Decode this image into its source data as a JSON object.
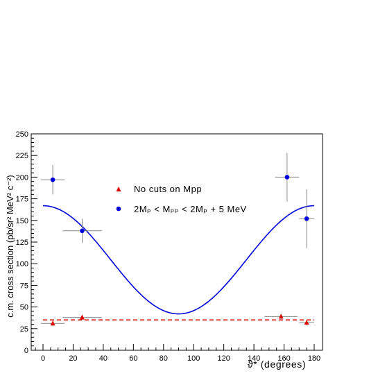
{
  "chart_data": {
    "type": "scatter",
    "xlabel": "ϑ* (degrees)",
    "ylabel": "c.m. cross section (pb/sr² MeV² c⁻²)",
    "xlim": [
      -8,
      180
    ],
    "ylim": [
      0,
      250
    ],
    "xticks": [
      0,
      20,
      40,
      60,
      80,
      100,
      120,
      140,
      160,
      180
    ],
    "yticks": [
      0,
      25,
      50,
      75,
      100,
      125,
      150,
      175,
      200,
      225,
      250
    ],
    "legend_position": "center",
    "grid": false,
    "series": [
      {
        "name": "No cuts on Mpp",
        "marker": "triangle",
        "color": "#dd0000",
        "points": [
          {
            "x": 6.5,
            "y": 31,
            "xerr": 8,
            "yerr": 3
          },
          {
            "x": 26,
            "y": 38,
            "xerr": 13,
            "yerr": 3
          },
          {
            "x": 158,
            "y": 39,
            "xerr": 11,
            "yerr": 3
          },
          {
            "x": 175,
            "y": 32,
            "xerr": 5,
            "yerr": 3
          }
        ]
      },
      {
        "name": "2Mₚ < Mₚₚ < 2Mₚ + 5 MeV",
        "marker": "circle",
        "color": "#0000dd",
        "points": [
          {
            "x": 6.5,
            "y": 197,
            "xerr": 8,
            "yerr": 17
          },
          {
            "x": 26,
            "y": 138,
            "xerr": 13,
            "yerr": 14
          },
          {
            "x": 162,
            "y": 200,
            "xerr": 8,
            "yerr": 28
          },
          {
            "x": 175,
            "y": 152,
            "xerr": 5,
            "yerr": 34
          }
        ]
      }
    ],
    "fit_curve": {
      "color": "#0000dd",
      "form": "a + b*cos^2(theta)",
      "a": 42,
      "b": 125,
      "x_range": [
        0,
        180
      ]
    },
    "reference_line": {
      "style": "dashed",
      "color": "#dd0000",
      "y": 35,
      "x_range": [
        0,
        180
      ]
    }
  }
}
